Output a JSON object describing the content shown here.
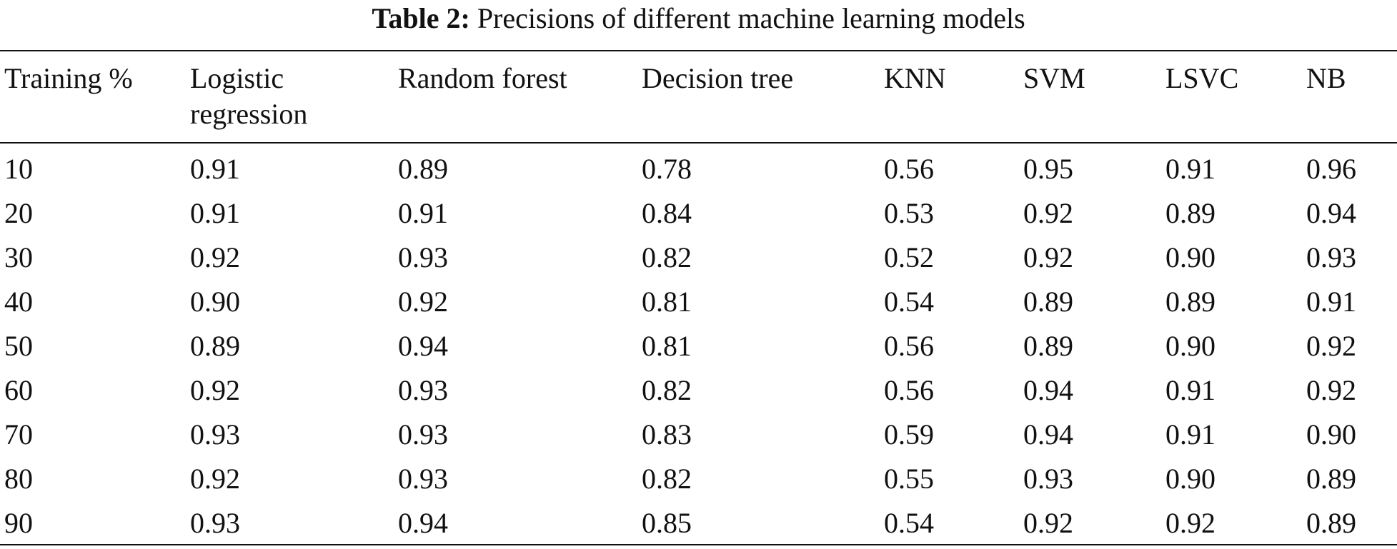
{
  "caption": {
    "label": "Table 2:",
    "text": "Precisions of different machine learning models"
  },
  "table": {
    "header": [
      "Training %",
      "Logistic regression",
      "Random forest",
      "Decision tree",
      "KNN",
      "SVM",
      "LSVC",
      "NB"
    ],
    "rows": [
      [
        "10",
        "0.91",
        "0.89",
        "0.78",
        "0.56",
        "0.95",
        "0.91",
        "0.96"
      ],
      [
        "20",
        "0.91",
        "0.91",
        "0.84",
        "0.53",
        "0.92",
        "0.89",
        "0.94"
      ],
      [
        "30",
        "0.92",
        "0.93",
        "0.82",
        "0.52",
        "0.92",
        "0.90",
        "0.93"
      ],
      [
        "40",
        "0.90",
        "0.92",
        "0.81",
        "0.54",
        "0.89",
        "0.89",
        "0.91"
      ],
      [
        "50",
        "0.89",
        "0.94",
        "0.81",
        "0.56",
        "0.89",
        "0.90",
        "0.92"
      ],
      [
        "60",
        "0.92",
        "0.93",
        "0.82",
        "0.56",
        "0.94",
        "0.91",
        "0.92"
      ],
      [
        "70",
        "0.93",
        "0.93",
        "0.83",
        "0.59",
        "0.94",
        "0.91",
        "0.90"
      ],
      [
        "80",
        "0.92",
        "0.93",
        "0.82",
        "0.55",
        "0.93",
        "0.90",
        "0.89"
      ],
      [
        "90",
        "0.93",
        "0.94",
        "0.85",
        "0.54",
        "0.92",
        "0.92",
        "0.89"
      ]
    ]
  }
}
